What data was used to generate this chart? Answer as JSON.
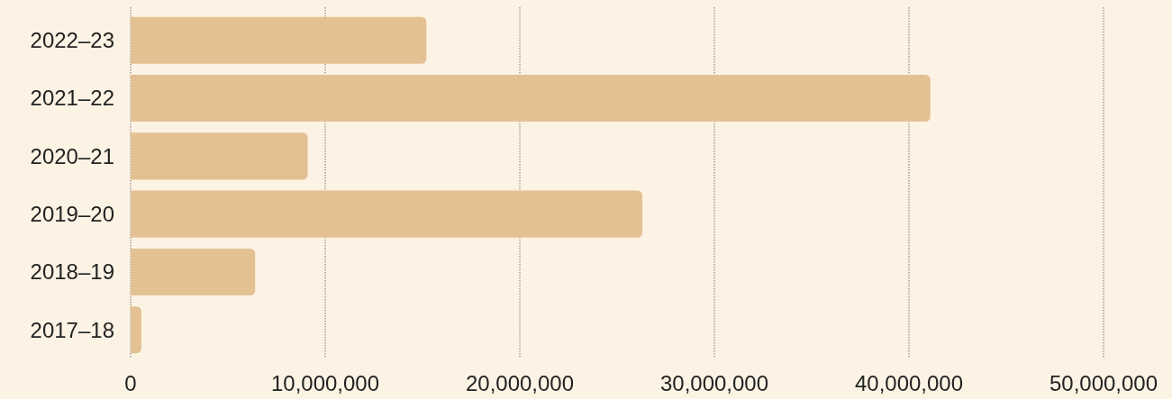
{
  "chart_data": {
    "type": "bar",
    "orientation": "horizontal",
    "categories": [
      "2022–23",
      "2021–22",
      "2020–21",
      "2019–20",
      "2018–19",
      "2017–18"
    ],
    "values": [
      15200000,
      41100000,
      9100000,
      26300000,
      6400000,
      550000
    ],
    "color": "#e3c193",
    "xlim": [
      0,
      50000000
    ],
    "xticks": [
      0,
      {
        "value": 10000000,
        "label": "10,000,000"
      },
      {
        "value": 20000000,
        "label": "20,000,000"
      },
      {
        "value": 30000000,
        "label": "30,000,000"
      },
      {
        "value": 40000000,
        "label": "40,000,000"
      },
      {
        "value": 50000000,
        "label": "50,000,000"
      }
    ],
    "grid": "x"
  }
}
